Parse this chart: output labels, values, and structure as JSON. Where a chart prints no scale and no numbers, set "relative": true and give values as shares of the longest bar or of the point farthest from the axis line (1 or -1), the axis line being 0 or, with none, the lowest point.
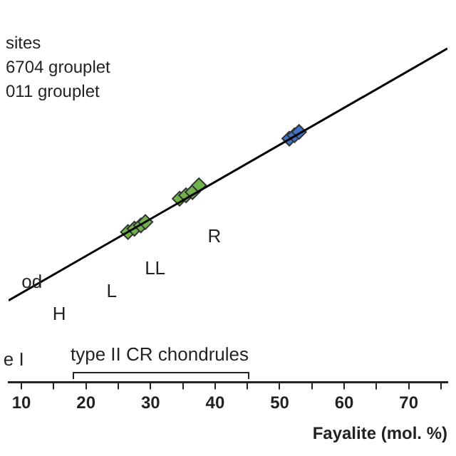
{
  "chart_data": {
    "type": "scatter",
    "xlabel": "Fayalite (mol. %)",
    "relative": true,
    "marker": "diamond",
    "grid": false,
    "legend": false,
    "xlim": [
      8,
      76
    ],
    "xticks": [
      10,
      {
        "value": 15,
        "label": null
      },
      20,
      {
        "value": 25,
        "label": null
      },
      30,
      {
        "value": 35,
        "label": null
      },
      40,
      {
        "value": 45,
        "label": null
      },
      50,
      {
        "value": 55,
        "label": null
      },
      60,
      {
        "value": 65,
        "label": null
      },
      70,
      {
        "value": 75,
        "label": null
      }
    ],
    "series": [
      {
        "type": "line",
        "marker": "none",
        "color": "#000000",
        "x": [
          8,
          76
        ],
        "values": [
          0.245,
          1.0
        ]
      },
      {
        "color": "#6fb34a",
        "x": [
          26.5,
          27.5,
          28.5,
          29.2,
          34.5,
          35.5,
          36.5,
          37.5
        ],
        "values": [
          0.45,
          0.46,
          0.47,
          0.48,
          0.55,
          0.56,
          0.57,
          0.59
        ]
      },
      {
        "color": "#4472c4",
        "x": [
          51.5,
          52.3,
          53
        ],
        "values": [
          0.73,
          0.74,
          0.75
        ]
      }
    ],
    "annotations": [
      "sites",
      "6704 grouplet",
      "011 grouplet",
      "H",
      "L",
      "LL",
      "R",
      "od",
      "e I",
      "type II CR chondrules"
    ]
  }
}
